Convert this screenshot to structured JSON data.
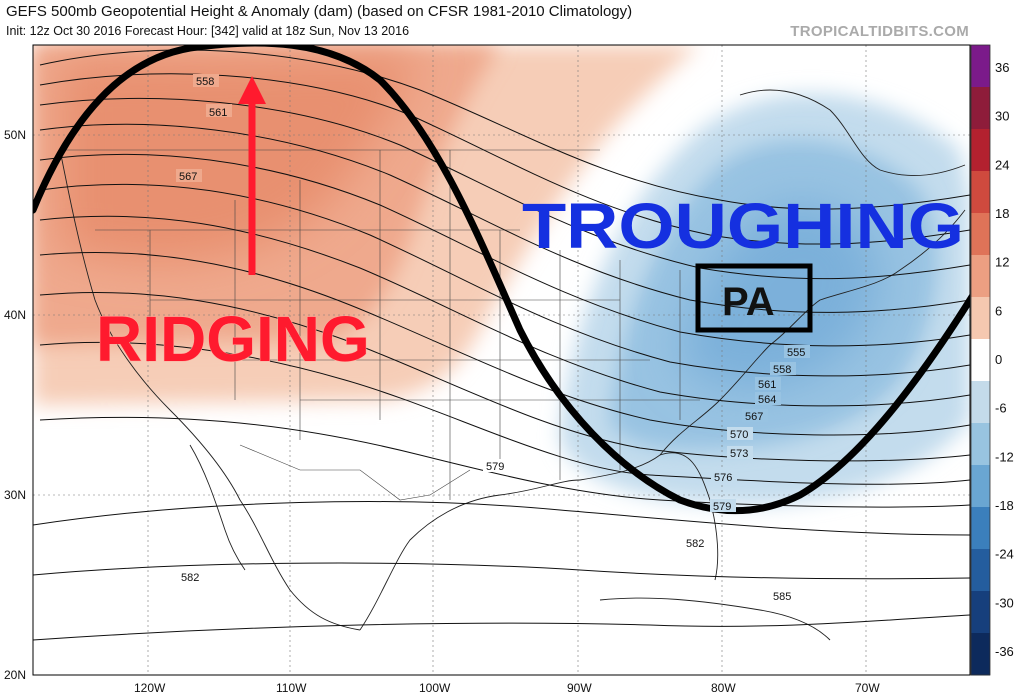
{
  "header": {
    "title": "GEFS 500mb Geopotential Height & Anomaly (dam) (based on CFSR 1981-2010 Climatology)",
    "subtitle": "Init: 12z Oct 30 2016   Forecast Hour: [342]   valid at 18z Sun, Nov 13 2016",
    "source": "TROPICALTIDBITS.COM"
  },
  "map": {
    "lat_labels": [
      "50N",
      "40N",
      "30N",
      "20N"
    ],
    "lon_labels": [
      "120W",
      "110W",
      "100W",
      "90W",
      "80W",
      "70W"
    ],
    "annotations": {
      "ridging": "RIDGING",
      "troughing": "TROUGHING",
      "state_box": "PA"
    },
    "contour_labels": [
      "558",
      "561",
      "567",
      "555",
      "558",
      "561",
      "564",
      "567",
      "570",
      "573",
      "576",
      "579",
      "579",
      "582",
      "582",
      "585"
    ],
    "colors": {
      "positive_anomaly": "#e8836a",
      "negative_anomaly": "#5b9fd0",
      "ridging_text": "#ff1a2e",
      "troughing_text": "#1530e0",
      "flow_line": "#000000"
    }
  },
  "colorbar": {
    "labels": [
      "36",
      "30",
      "24",
      "18",
      "12",
      "6",
      "0",
      "-6",
      "-12",
      "-18",
      "-24",
      "-30",
      "-36"
    ],
    "colors": [
      "#7b1a8a",
      "#8e1c3a",
      "#b3212f",
      "#cf4a3e",
      "#df7358",
      "#ec9f82",
      "#f5c8b0",
      "#ffffff",
      "#c4dbea",
      "#98c4e0",
      "#6aa6d2",
      "#3b7fbc",
      "#245d9e",
      "#163f7c",
      "#0d2a5c"
    ]
  }
}
